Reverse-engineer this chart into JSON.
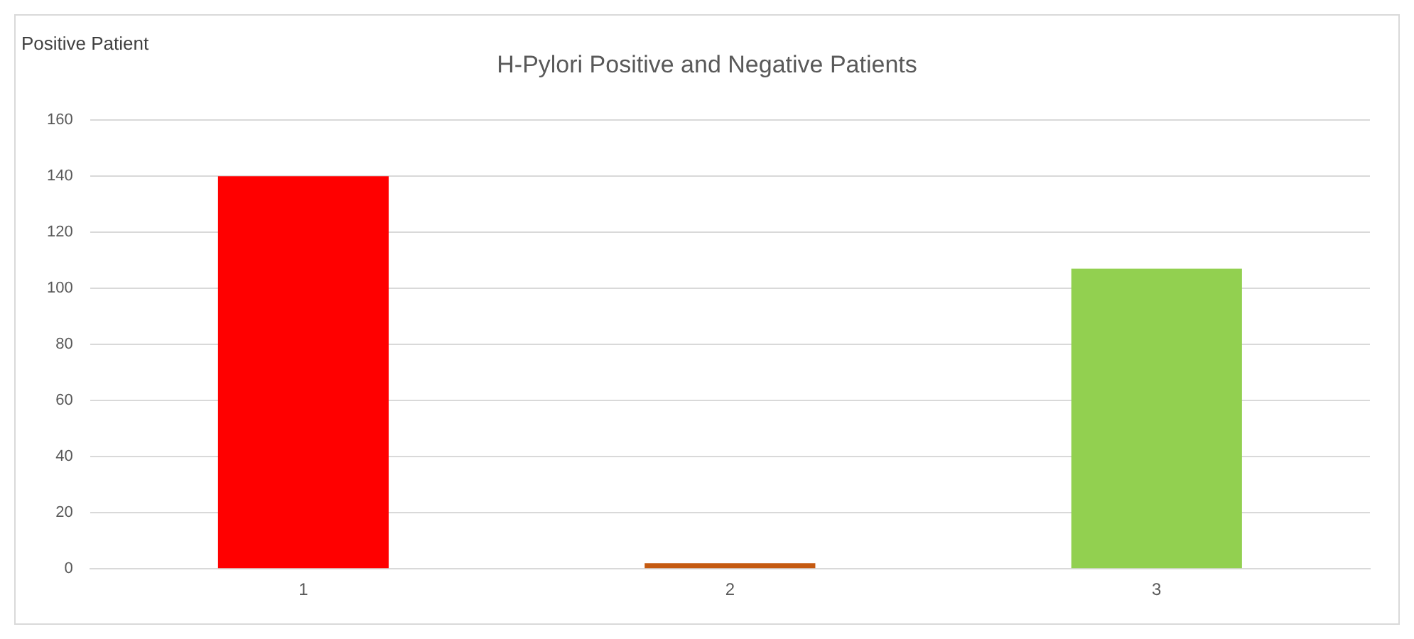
{
  "chart_data": {
    "type": "bar",
    "title": "H-Pylori Positive and Negative Patients",
    "ylabel": "Positive Patient",
    "categories": [
      "1",
      "2",
      "3"
    ],
    "values": [
      140,
      2,
      107
    ],
    "colors": [
      "#ff0000",
      "#c55a11",
      "#92d050"
    ],
    "ylim": [
      0,
      160
    ],
    "yticks": [
      0,
      20,
      40,
      60,
      80,
      100,
      120,
      140,
      160
    ],
    "grid": "y",
    "legend": false
  }
}
